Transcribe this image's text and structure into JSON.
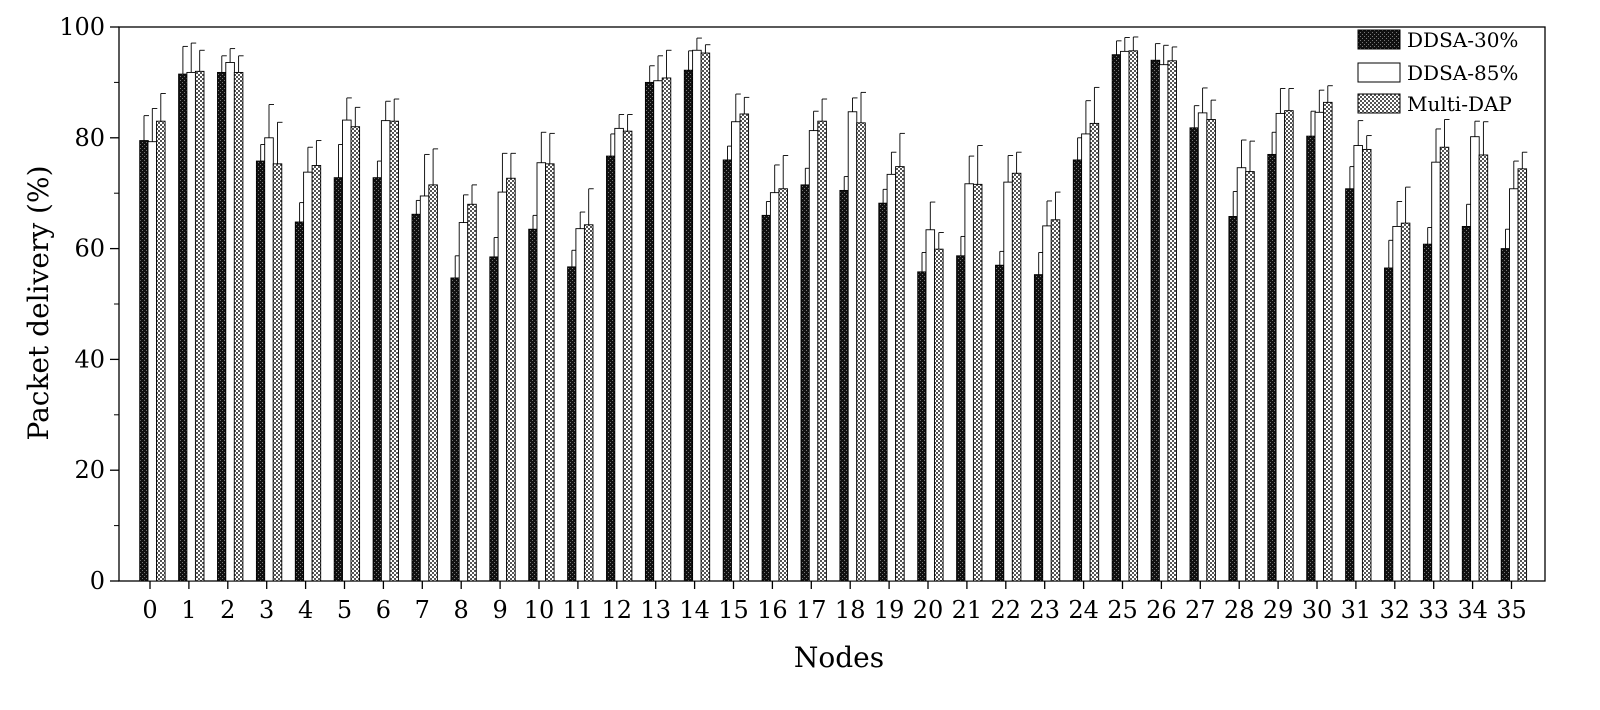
{
  "chart_data": {
    "type": "bar",
    "title": "",
    "xlabel": "Nodes",
    "ylabel": "Packet delivery (%)",
    "ylim": [
      0,
      100
    ],
    "yticks": [
      0,
      20,
      40,
      60,
      80,
      100
    ],
    "grid": false,
    "legend_position": "top-right",
    "categories": [
      "0",
      "1",
      "2",
      "3",
      "4",
      "5",
      "6",
      "7",
      "8",
      "9",
      "10",
      "11",
      "12",
      "13",
      "14",
      "15",
      "16",
      "17",
      "18",
      "19",
      "20",
      "21",
      "22",
      "23",
      "24",
      "25",
      "26",
      "27",
      "28",
      "29",
      "30",
      "31",
      "32",
      "33",
      "34",
      "35"
    ],
    "series": [
      {
        "name": "DDSA-30%",
        "pattern": "dark",
        "values": [
          79.5,
          91.5,
          91.8,
          75.8,
          64.8,
          72.8,
          72.8,
          66.2,
          54.7,
          58.5,
          63.5,
          56.7,
          76.7,
          90,
          92.2,
          76,
          66,
          71.5,
          70.5,
          68.2,
          55.8,
          58.7,
          57,
          55.3,
          76,
          95,
          94,
          81.8,
          65.8,
          77,
          80.3,
          70.8,
          56.5,
          60.8,
          64,
          60
        ],
        "errors": [
          4.5,
          5,
          3,
          3,
          3.5,
          6,
          3,
          2.5,
          4,
          3.5,
          2.5,
          3,
          4,
          3,
          3.5,
          2.5,
          2.5,
          3,
          2.5,
          2.5,
          3.5,
          3.5,
          2.5,
          4,
          4,
          2.5,
          3,
          4,
          4.5,
          4,
          4.5,
          4,
          5,
          3,
          4,
          3.5
        ]
      },
      {
        "name": "DDSA-85%",
        "pattern": "white",
        "values": [
          79.3,
          91.8,
          93.6,
          80,
          73.8,
          83.2,
          83.1,
          69.5,
          64.7,
          70.2,
          75.5,
          63.6,
          81.7,
          90.3,
          95.8,
          82.9,
          70.1,
          81.3,
          84.7,
          73.4,
          63.4,
          71.7,
          72,
          64.1,
          80.7,
          95.6,
          93.2,
          84.5,
          74.6,
          84.4,
          84.6,
          78.6,
          64,
          75.6,
          80.2,
          70.8
        ],
        "errors": [
          6,
          5.3,
          2.5,
          6,
          4.5,
          4,
          3.5,
          7.5,
          5,
          7,
          5.5,
          3,
          2.5,
          4.5,
          2.2,
          5,
          5,
          3.5,
          2.5,
          4,
          5,
          5,
          4.8,
          4.5,
          6,
          2.5,
          3.5,
          4.5,
          5,
          4.5,
          4,
          4.5,
          4.5,
          6,
          2.8,
          5
        ]
      },
      {
        "name": "Multi-DAP",
        "pattern": "checker",
        "values": [
          83,
          92,
          91.8,
          75.3,
          75,
          82,
          83,
          71.5,
          68,
          72.7,
          75.3,
          64.3,
          81.2,
          90.8,
          95.3,
          84.3,
          70.8,
          83,
          82.7,
          74.8,
          59.9,
          71.6,
          73.6,
          65.2,
          82.6,
          95.7,
          93.9,
          83.3,
          73.9,
          84.9,
          86.4,
          77.9,
          64.6,
          78.3,
          76.9,
          74.4
        ],
        "errors": [
          5,
          3.8,
          3,
          7.5,
          4.5,
          3.5,
          4,
          6.5,
          3.5,
          4.5,
          5.5,
          6.5,
          3,
          5,
          1.5,
          3,
          6,
          4,
          5.5,
          6,
          3,
          7,
          3.8,
          5,
          6.5,
          2.5,
          2.5,
          3.5,
          5.5,
          4,
          3,
          2.5,
          6.5,
          5,
          6,
          3
        ]
      }
    ]
  }
}
